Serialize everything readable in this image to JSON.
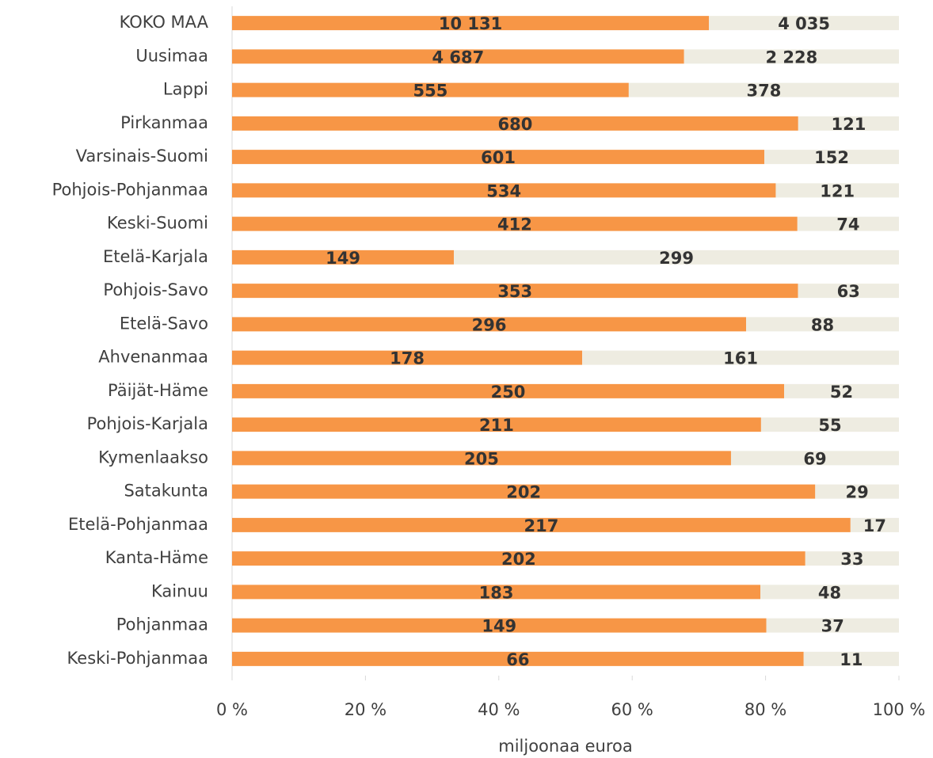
{
  "chart_data": {
    "type": "bar",
    "orientation": "horizontal",
    "stacking": "percent",
    "x_label": "miljoonaa euroa",
    "categories": [
      "KOKO MAA",
      "Uusimaa",
      "Lappi",
      "Pirkanmaa",
      "Varsinais-Suomi",
      "Pohjois-Pohjanmaa",
      "Keski-Suomi",
      "Etelä-Karjala",
      "Pohjois-Savo",
      "Etelä-Savo",
      "Ahvenanmaa",
      "Päijät-Häme",
      "Pohjois-Karjala",
      "Kymenlaakso",
      "Satakunta",
      "Etelä-Pohjanmaa",
      "Kanta-Häme",
      "Kainuu",
      "Pohjanmaa",
      "Keski-Pohjanmaa"
    ],
    "series": [
      {
        "color": "#f79646",
        "values": [
          10131,
          4687,
          555,
          680,
          601,
          534,
          412,
          149,
          353,
          296,
          178,
          250,
          211,
          205,
          202,
          217,
          202,
          183,
          149,
          66
        ],
        "value_labels": [
          "10 131",
          "4 687",
          "555",
          "680",
          "601",
          "534",
          "412",
          "149",
          "353",
          "296",
          "178",
          "250",
          "211",
          "205",
          "202",
          "217",
          "202",
          "183",
          "149",
          "66"
        ]
      },
      {
        "color": "#eeece1",
        "values": [
          4035,
          2228,
          378,
          121,
          152,
          121,
          74,
          299,
          63,
          88,
          161,
          52,
          55,
          69,
          29,
          17,
          33,
          48,
          37,
          11
        ],
        "value_labels": [
          "4 035",
          "2 228",
          "378",
          "121",
          "152",
          "121",
          "74",
          "299",
          "63",
          "88",
          "161",
          "52",
          "55",
          "69",
          "29",
          "17",
          "33",
          "48",
          "37",
          "11"
        ]
      }
    ],
    "xlim": [
      0,
      100
    ],
    "xticks": [
      {
        "value": 0,
        "label": "0 %"
      },
      {
        "value": 20,
        "label": "20 %"
      },
      {
        "value": 40,
        "label": "40 %"
      },
      {
        "value": 60,
        "label": "60 %"
      },
      {
        "value": 80,
        "label": "80 %"
      },
      {
        "value": 100,
        "label": "100 %"
      }
    ],
    "grid": false
  }
}
